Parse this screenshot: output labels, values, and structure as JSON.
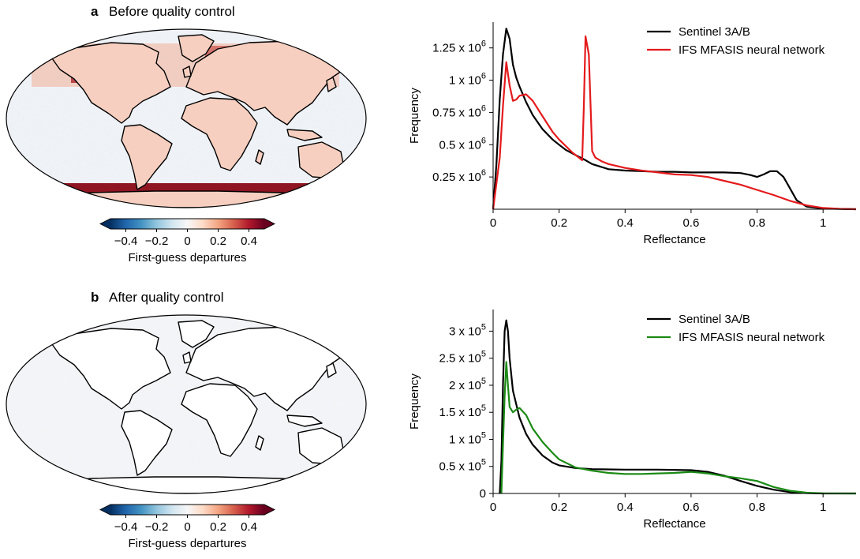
{
  "panels": [
    {
      "letter": "a",
      "title": "Before quality control"
    },
    {
      "letter": "b",
      "title": "After quality control"
    }
  ],
  "colorbar": {
    "label": "First-guess departures",
    "ticks": [
      "−0.4",
      "−0.2",
      "0",
      "0.2",
      "0.4"
    ],
    "tick_values": [
      -0.4,
      -0.2,
      0,
      0.2,
      0.4
    ],
    "range": [
      -0.5,
      0.5
    ],
    "cmap": [
      "#053061",
      "#2166ac",
      "#4393c3",
      "#92c5de",
      "#d1e5f0",
      "#f7f7f7",
      "#fddbc7",
      "#f4a582",
      "#d6604d",
      "#b2182b",
      "#67001f"
    ]
  },
  "chart_data": [
    {
      "type": "line",
      "xlabel": "Reflectance",
      "ylabel": "Frequency",
      "xlim": [
        0,
        1.1
      ],
      "ylim": [
        0,
        1450000
      ],
      "xticks": [
        0,
        0.2,
        0.4,
        0.6,
        0.8,
        1
      ],
      "xtick_labels": [
        "0",
        "0.2",
        "0.4",
        "0.6",
        "0.8",
        "1"
      ],
      "yticks": [
        250000,
        500000,
        750000,
        1000000,
        1250000
      ],
      "ytick_labels": [
        {
          "base": "0.25 x 10",
          "exp": "6"
        },
        {
          "base": "0.5 x 10",
          "exp": "6"
        },
        {
          "base": "0.75 x 10",
          "exp": "6"
        },
        {
          "base": "1 x 10",
          "exp": "6"
        },
        {
          "base": "1.25 x 10",
          "exp": "6"
        }
      ],
      "grid": false,
      "legend": "top-right",
      "series": [
        {
          "name": "Sentinel 3A/B",
          "color": "#000000",
          "points": [
            [
              0.0,
              0
            ],
            [
              0.01,
              350000
            ],
            [
              0.02,
              850000
            ],
            [
              0.03,
              1200000
            ],
            [
              0.04,
              1400000
            ],
            [
              0.05,
              1320000
            ],
            [
              0.06,
              1120000
            ],
            [
              0.07,
              1020000
            ],
            [
              0.08,
              950000
            ],
            [
              0.1,
              830000
            ],
            [
              0.12,
              730000
            ],
            [
              0.15,
              620000
            ],
            [
              0.18,
              540000
            ],
            [
              0.2,
              500000
            ],
            [
              0.22,
              460000
            ],
            [
              0.25,
              420000
            ],
            [
              0.28,
              380000
            ],
            [
              0.3,
              350000
            ],
            [
              0.35,
              310000
            ],
            [
              0.4,
              300000
            ],
            [
              0.45,
              295000
            ],
            [
              0.5,
              290000
            ],
            [
              0.55,
              290000
            ],
            [
              0.6,
              285000
            ],
            [
              0.65,
              285000
            ],
            [
              0.7,
              285000
            ],
            [
              0.75,
              280000
            ],
            [
              0.78,
              265000
            ],
            [
              0.8,
              250000
            ],
            [
              0.82,
              270000
            ],
            [
              0.84,
              295000
            ],
            [
              0.86,
              295000
            ],
            [
              0.88,
              250000
            ],
            [
              0.9,
              160000
            ],
            [
              0.92,
              70000
            ],
            [
              0.95,
              20000
            ],
            [
              1.0,
              5000
            ],
            [
              1.1,
              0
            ]
          ]
        },
        {
          "name": "IFS MFASIS neural network",
          "color": "#e41a1c",
          "points": [
            [
              0.0,
              0
            ],
            [
              0.02,
              400000
            ],
            [
              0.03,
              800000
            ],
            [
              0.04,
              1140000
            ],
            [
              0.05,
              960000
            ],
            [
              0.06,
              840000
            ],
            [
              0.07,
              850000
            ],
            [
              0.08,
              880000
            ],
            [
              0.1,
              890000
            ],
            [
              0.12,
              840000
            ],
            [
              0.14,
              760000
            ],
            [
              0.16,
              680000
            ],
            [
              0.18,
              600000
            ],
            [
              0.2,
              540000
            ],
            [
              0.22,
              490000
            ],
            [
              0.24,
              440000
            ],
            [
              0.26,
              400000
            ],
            [
              0.27,
              380000
            ],
            [
              0.275,
              800000
            ],
            [
              0.28,
              1340000
            ],
            [
              0.29,
              1200000
            ],
            [
              0.3,
              450000
            ],
            [
              0.31,
              400000
            ],
            [
              0.33,
              370000
            ],
            [
              0.35,
              350000
            ],
            [
              0.4,
              320000
            ],
            [
              0.45,
              300000
            ],
            [
              0.5,
              285000
            ],
            [
              0.55,
              270000
            ],
            [
              0.6,
              265000
            ],
            [
              0.65,
              250000
            ],
            [
              0.7,
              220000
            ],
            [
              0.75,
              190000
            ],
            [
              0.8,
              150000
            ],
            [
              0.85,
              110000
            ],
            [
              0.9,
              65000
            ],
            [
              0.95,
              30000
            ],
            [
              1.0,
              10000
            ],
            [
              1.05,
              3000
            ],
            [
              1.1,
              0
            ]
          ]
        }
      ]
    },
    {
      "type": "line",
      "xlabel": "Reflectance",
      "ylabel": "Frequency",
      "xlim": [
        0,
        1.1
      ],
      "ylim": [
        0,
        340000
      ],
      "xticks": [
        0,
        0.2,
        0.4,
        0.6,
        0.8,
        1
      ],
      "xtick_labels": [
        "0",
        "0.2",
        "0.4",
        "0.6",
        "0.8",
        "1"
      ],
      "yticks": [
        0,
        50000,
        100000,
        150000,
        200000,
        250000,
        300000
      ],
      "ytick_labels": [
        {
          "base": "0",
          "exp": ""
        },
        {
          "base": "0.5 x 10",
          "exp": "5"
        },
        {
          "base": "1 x 10",
          "exp": "5"
        },
        {
          "base": "1.5 x 10",
          "exp": "5"
        },
        {
          "base": "2 x 10",
          "exp": "5"
        },
        {
          "base": "2.5 x 10",
          "exp": "5"
        },
        {
          "base": "3 x 10",
          "exp": "5"
        }
      ],
      "grid": false,
      "legend": "top-right",
      "series": [
        {
          "name": "Sentinel 3A/B",
          "color": "#000000",
          "points": [
            [
              0.02,
              0
            ],
            [
              0.025,
              60000
            ],
            [
              0.03,
              200000
            ],
            [
              0.035,
              300000
            ],
            [
              0.04,
              320000
            ],
            [
              0.045,
              300000
            ],
            [
              0.05,
              250000
            ],
            [
              0.06,
              190000
            ],
            [
              0.08,
              140000
            ],
            [
              0.1,
              110000
            ],
            [
              0.12,
              90000
            ],
            [
              0.15,
              70000
            ],
            [
              0.18,
              57000
            ],
            [
              0.2,
              52000
            ],
            [
              0.25,
              47000
            ],
            [
              0.3,
              45000
            ],
            [
              0.4,
              44000
            ],
            [
              0.5,
              44000
            ],
            [
              0.6,
              43000
            ],
            [
              0.65,
              40000
            ],
            [
              0.7,
              33000
            ],
            [
              0.75,
              23000
            ],
            [
              0.8,
              14000
            ],
            [
              0.85,
              7000
            ],
            [
              0.9,
              2500
            ],
            [
              0.95,
              800
            ],
            [
              1.0,
              0
            ],
            [
              1.1,
              0
            ]
          ]
        },
        {
          "name": "IFS MFASIS neural network",
          "color": "#1a8a14",
          "points": [
            [
              0.025,
              0
            ],
            [
              0.03,
              90000
            ],
            [
              0.035,
              180000
            ],
            [
              0.04,
              243000
            ],
            [
              0.045,
              200000
            ],
            [
              0.05,
              160000
            ],
            [
              0.06,
              150000
            ],
            [
              0.07,
              155000
            ],
            [
              0.08,
              158000
            ],
            [
              0.1,
              145000
            ],
            [
              0.12,
              120000
            ],
            [
              0.15,
              95000
            ],
            [
              0.18,
              75000
            ],
            [
              0.2,
              63000
            ],
            [
              0.25,
              48000
            ],
            [
              0.3,
              42000
            ],
            [
              0.35,
              38000
            ],
            [
              0.4,
              36000
            ],
            [
              0.45,
              36000
            ],
            [
              0.5,
              37000
            ],
            [
              0.55,
              38000
            ],
            [
              0.6,
              40000
            ],
            [
              0.65,
              37000
            ],
            [
              0.7,
              32000
            ],
            [
              0.75,
              28000
            ],
            [
              0.8,
              23000
            ],
            [
              0.85,
              12000
            ],
            [
              0.9,
              5000
            ],
            [
              0.95,
              1500
            ],
            [
              1.0,
              300
            ],
            [
              1.1,
              0
            ]
          ]
        }
      ]
    }
  ]
}
